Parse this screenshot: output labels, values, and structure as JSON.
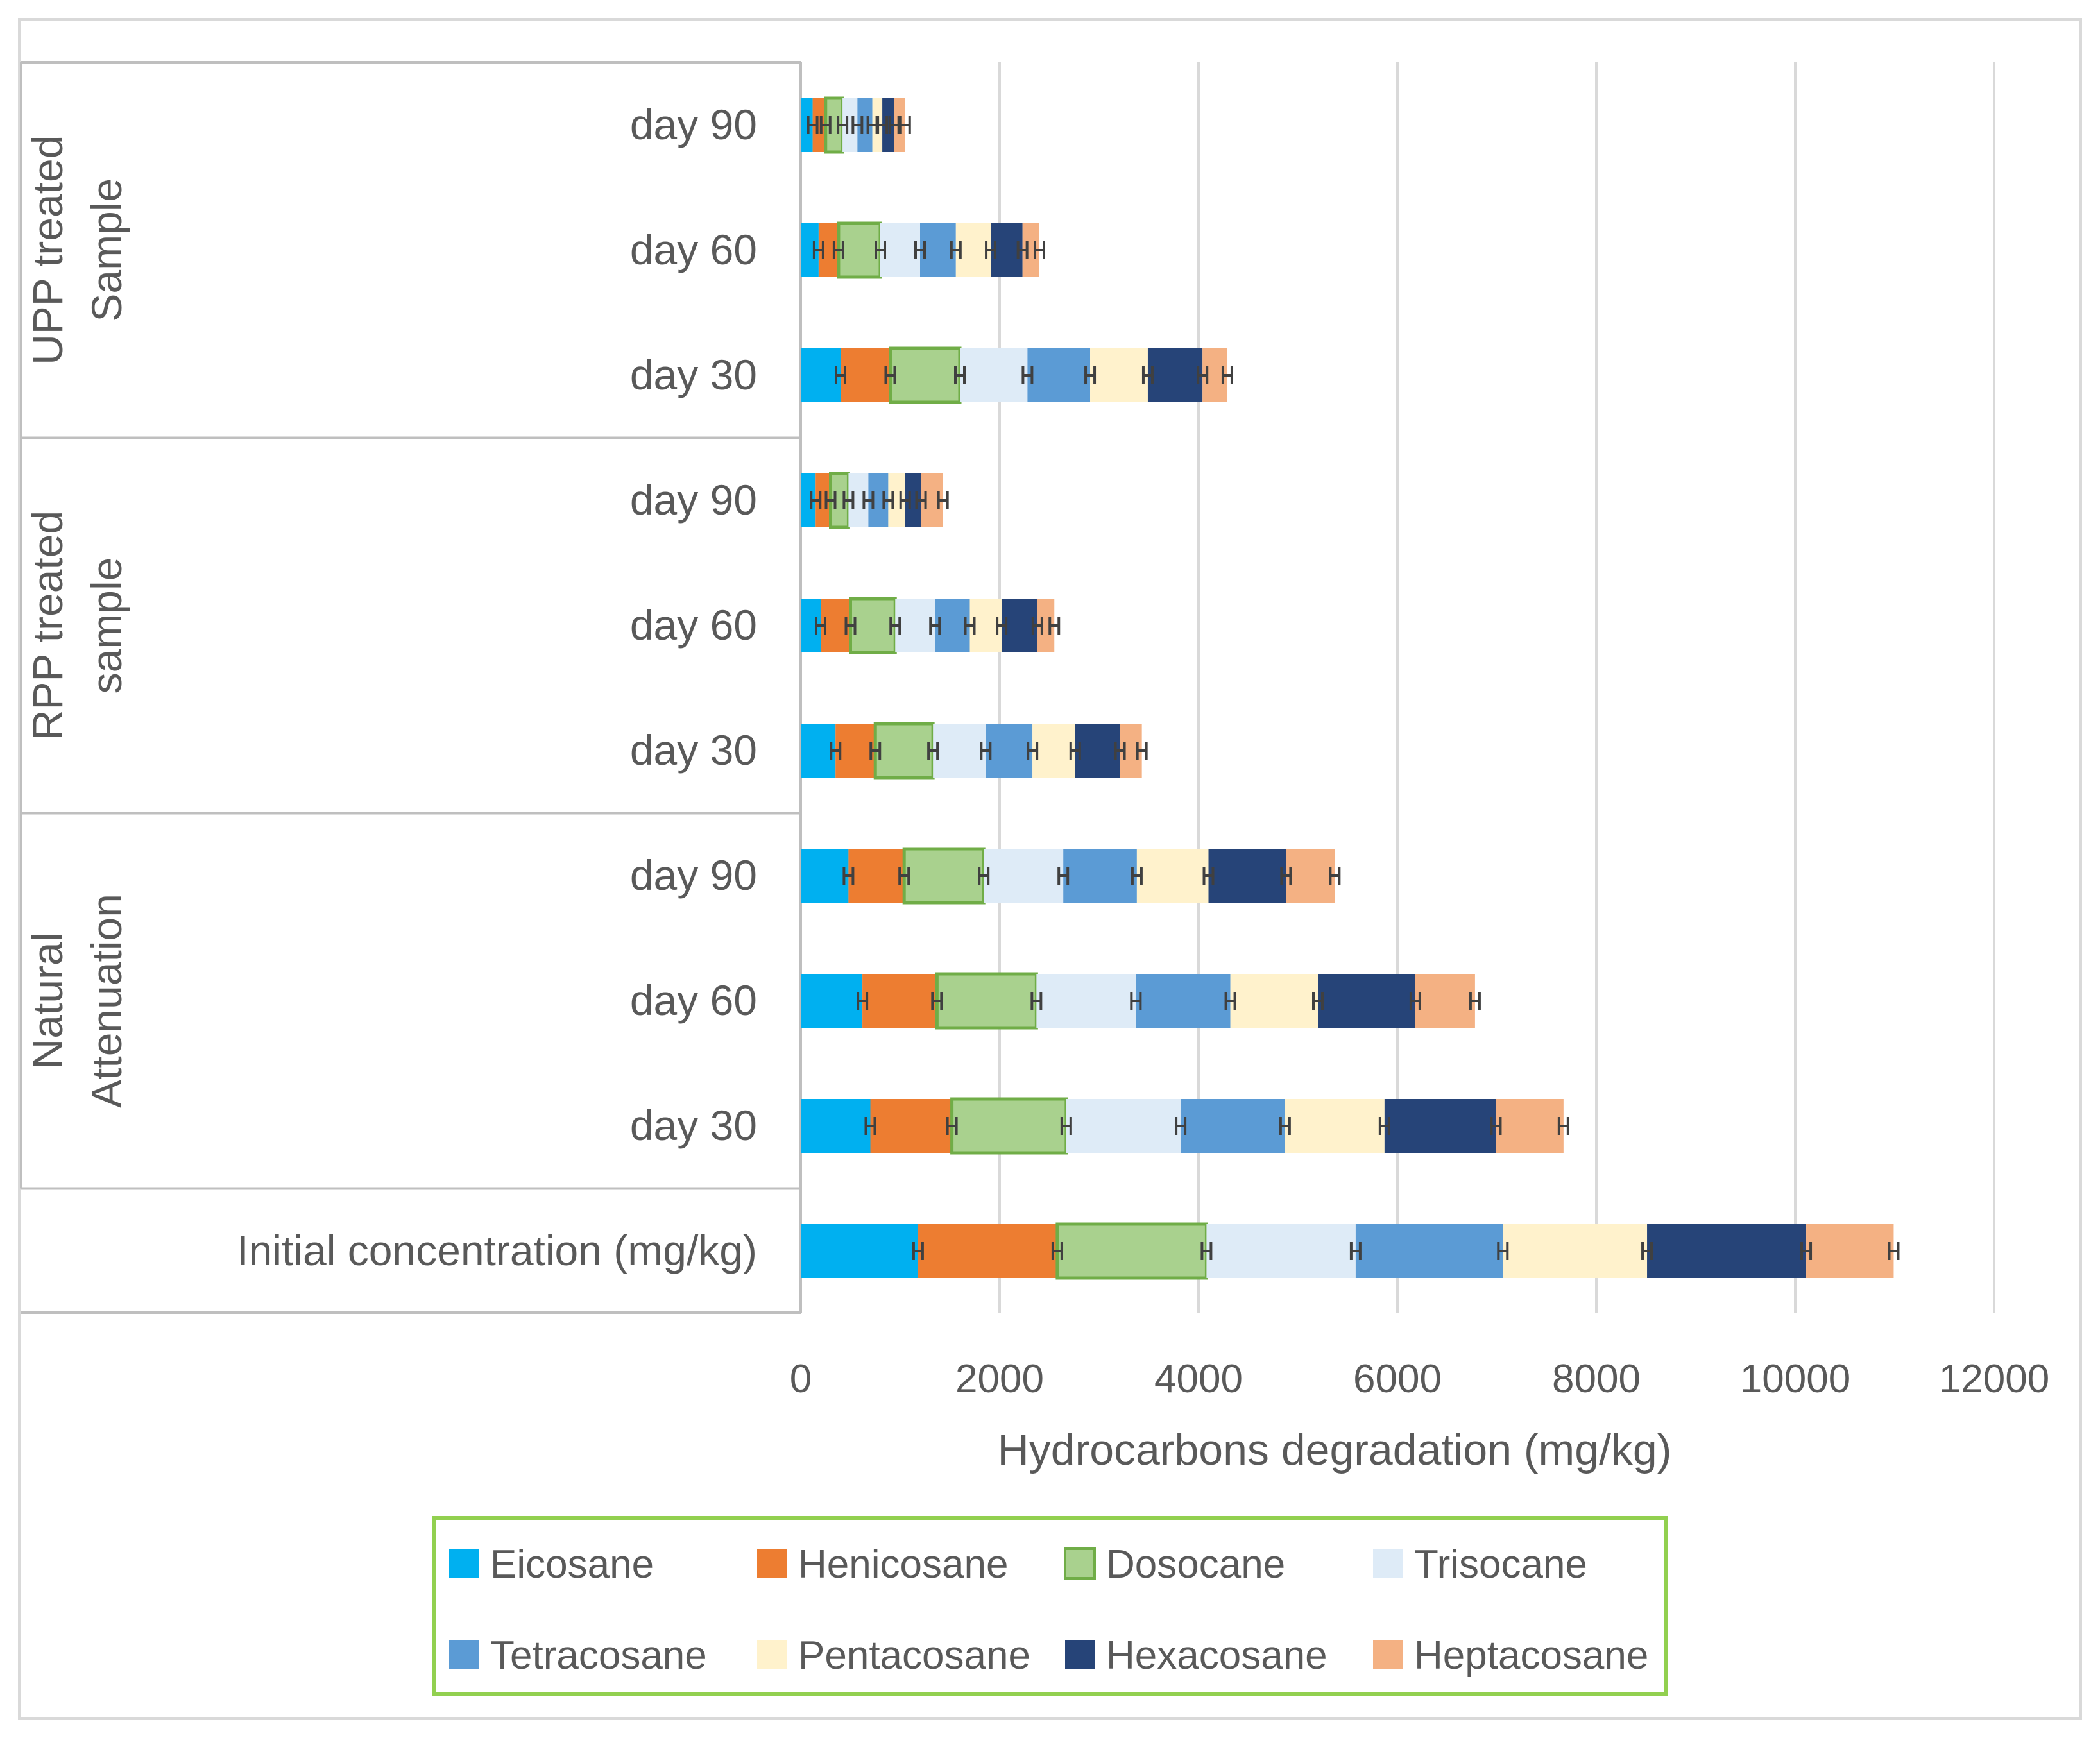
{
  "chart_data": {
    "type": "bar",
    "orientation": "horizontal",
    "stacked": true,
    "xlabel": "Hydrocarbons degradation (mg/kg)",
    "xlim": [
      0,
      12000
    ],
    "xticks": [
      "0",
      "2000",
      "4000",
      "6000",
      "8000",
      "10000",
      "12000"
    ],
    "grid": "vertical",
    "legend_position": "bottom",
    "groups": [
      {
        "label": "UPP treated Sample",
        "lines": [
          "UPP treated",
          "Sample"
        ]
      },
      {
        "label": "RPP treated sample",
        "lines": [
          "RPP treated",
          "sample"
        ]
      },
      {
        "label": "Natural Attenuation",
        "lines": [
          "Natural",
          "Attenuation"
        ]
      },
      {
        "label": "",
        "lines": []
      }
    ],
    "categories": [
      {
        "label": "day 90",
        "group": 0
      },
      {
        "label": "day 60",
        "group": 0
      },
      {
        "label": "day 30",
        "group": 0
      },
      {
        "label": "day 90",
        "group": 1
      },
      {
        "label": "day 60",
        "group": 1
      },
      {
        "label": "day 30",
        "group": 1
      },
      {
        "label": "day 90",
        "group": 2
      },
      {
        "label": "day 60",
        "group": 2
      },
      {
        "label": "day 30",
        "group": 2
      },
      {
        "label": "Initial concentration (mg/kg)",
        "group": 3
      }
    ],
    "series": [
      {
        "name": "Eicosane",
        "color": "#00B0F0",
        "border": "",
        "values": [
          120,
          180,
          400,
          150,
          200,
          350,
          480,
          620,
          700,
          1180
        ]
      },
      {
        "name": "Henicosane",
        "color": "#ED7D31",
        "border": "",
        "values": [
          130,
          200,
          500,
          150,
          300,
          400,
          560,
          750,
          820,
          1400
        ]
      },
      {
        "name": "Dosocane",
        "color": "#A9D18E",
        "border": "#70AD47",
        "values": [
          170,
          420,
          700,
          180,
          450,
          580,
          800,
          1000,
          1150,
          1500
        ]
      },
      {
        "name": "Trisocane",
        "color": "#DEEBF7",
        "border": "",
        "values": [
          150,
          400,
          680,
          200,
          400,
          530,
          800,
          1000,
          1150,
          1500
        ]
      },
      {
        "name": "Tetracosane",
        "color": "#5B9BD5",
        "border": "",
        "values": [
          150,
          360,
          630,
          200,
          350,
          470,
          740,
          950,
          1050,
          1480
        ]
      },
      {
        "name": "Pentacosane",
        "color": "#FFF2CC",
        "border": "",
        "values": [
          100,
          350,
          580,
          170,
          320,
          430,
          720,
          880,
          1000,
          1450
        ]
      },
      {
        "name": "Hexacosane",
        "color": "#264478",
        "border": "",
        "values": [
          120,
          320,
          550,
          160,
          360,
          450,
          780,
          980,
          1120,
          1600
        ]
      },
      {
        "name": "Heptacosane",
        "color": "#F4B183",
        "border": "",
        "values": [
          110,
          170,
          250,
          220,
          170,
          220,
          490,
          600,
          680,
          880
        ]
      }
    ],
    "error_bars": true
  }
}
